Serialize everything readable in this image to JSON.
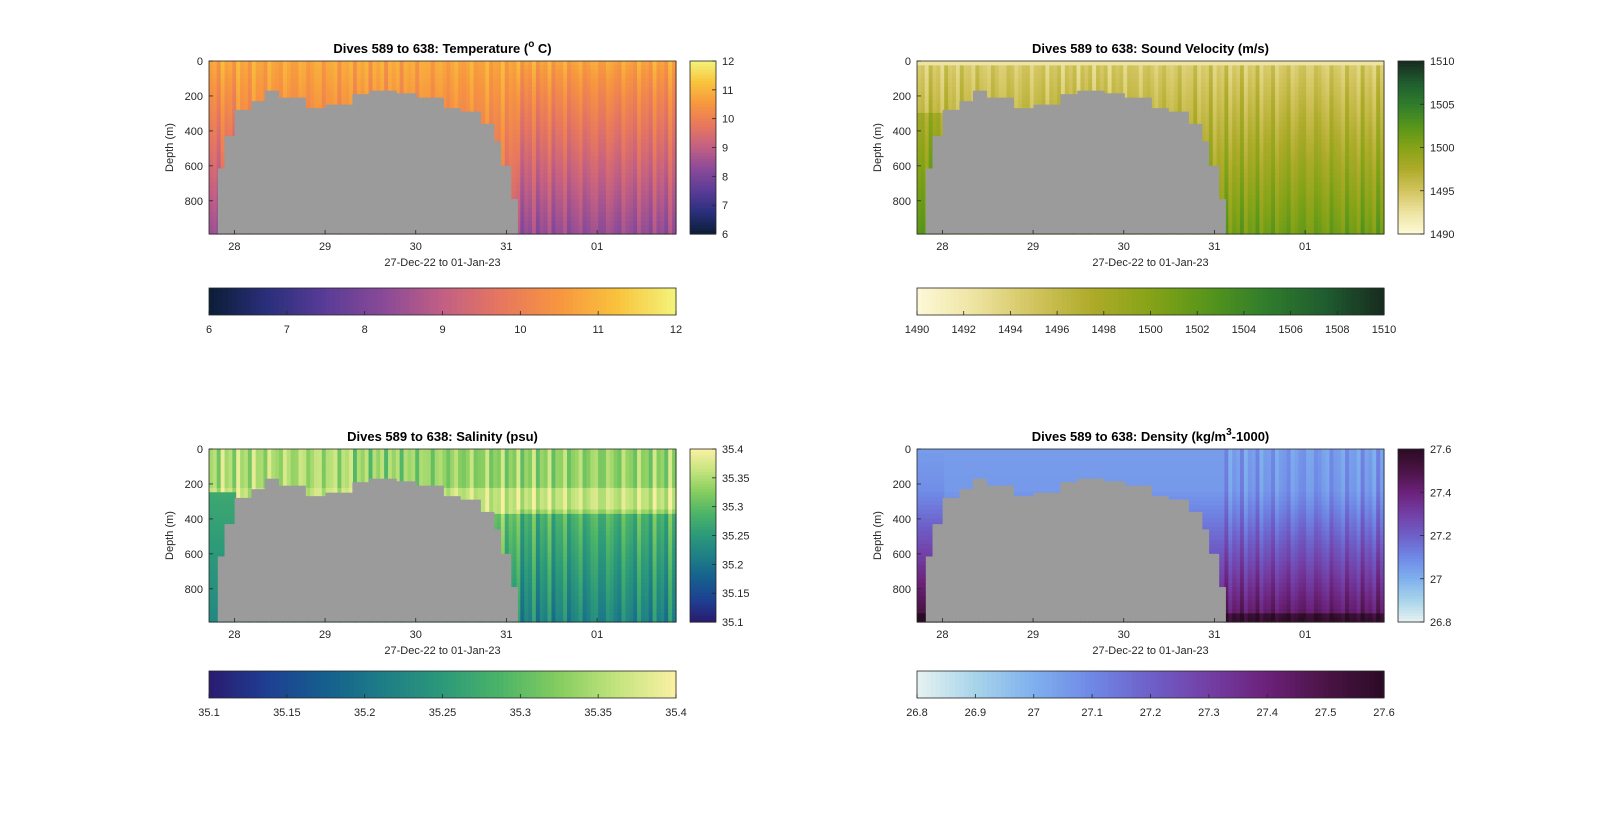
{
  "figure": {
    "panels": [
      {
        "id": "temperature",
        "title_main": "Dives 589 to 638: Temperature (",
        "title_sup": "o",
        "title_end": " C)",
        "ylabel": "Depth (m)",
        "xlabel": "27-Dec-22 to 01-Jan-23",
        "xticks": [
          "28",
          "29",
          "30",
          "31",
          "01"
        ],
        "yticks": [
          "0",
          "200",
          "400",
          "600",
          "800"
        ],
        "colormap": [
          "#0b1d35",
          "#2a2f7c",
          "#5a3c97",
          "#8a4a98",
          "#c25f84",
          "#e7775f",
          "#f7963f",
          "#f9c33c",
          "#f3f47a"
        ],
        "side_colorbar_ticks": [
          "12",
          "11",
          "10",
          "9",
          "8",
          "7",
          "6"
        ],
        "bottom_colorbar_ticks": [
          "6",
          "7",
          "8",
          "9",
          "10",
          "11",
          "12"
        ]
      },
      {
        "id": "sound-velocity",
        "title_main": "Dives 589 to 638: Sound Velocity (m/s)",
        "title_sup": "",
        "title_end": "",
        "ylabel": "Depth (m)",
        "xlabel": "27-Dec-22 to 01-Jan-23",
        "xticks": [
          "28",
          "29",
          "30",
          "31",
          "01"
        ],
        "yticks": [
          "0",
          "200",
          "400",
          "600",
          "800"
        ],
        "colormap": [
          "#fdf9d8",
          "#ede3a0",
          "#d2c45e",
          "#aeab2a",
          "#86a317",
          "#56951b",
          "#2f7c2c",
          "#1f5c2f",
          "#172b1f"
        ],
        "side_colorbar_ticks": [
          "1510",
          "1505",
          "1500",
          "1495",
          "1490"
        ],
        "bottom_colorbar_ticks": [
          "1490",
          "1492",
          "1494",
          "1496",
          "1498",
          "1500",
          "1502",
          "1504",
          "1506",
          "1508",
          "1510"
        ]
      },
      {
        "id": "salinity",
        "title_main": "Dives 589 to 638: Salinity (psu)",
        "title_sup": "",
        "title_end": "",
        "ylabel": "Depth (m)",
        "xlabel": "27-Dec-22 to 01-Jan-23",
        "xticks": [
          "28",
          "29",
          "30",
          "31",
          "01"
        ],
        "yticks": [
          "0",
          "200",
          "400",
          "600",
          "800"
        ],
        "colormap": [
          "#2a1b70",
          "#1e3f92",
          "#155f8e",
          "#1e7e86",
          "#2c997a",
          "#4cb468",
          "#86cd5f",
          "#c4e47e",
          "#fbf1a3"
        ],
        "side_colorbar_ticks": [
          "35.4",
          "35.35",
          "35.3",
          "35.25",
          "35.2",
          "35.15",
          "35.1"
        ],
        "bottom_colorbar_ticks": [
          "35.1",
          "35.15",
          "35.2",
          "35.25",
          "35.3",
          "35.35",
          "35.4"
        ]
      },
      {
        "id": "density",
        "title_main": "Dives 589 to 638: Density (kg/m",
        "title_sup": "3",
        "title_end": "-1000)",
        "ylabel": "Depth (m)",
        "xlabel": "27-Dec-22 to 01-Jan-23",
        "xticks": [
          "28",
          "29",
          "30",
          "31",
          "01"
        ],
        "yticks": [
          "0",
          "200",
          "400",
          "600",
          "800"
        ],
        "colormap": [
          "#e6f2f1",
          "#a8d4ea",
          "#7fb0ee",
          "#6f88e6",
          "#6e5fc8",
          "#733fa5",
          "#6b2179",
          "#4b1446",
          "#2a0b24"
        ],
        "side_colorbar_ticks": [
          "27.6",
          "27.4",
          "27.2",
          "27",
          "26.8"
        ],
        "bottom_colorbar_ticks": [
          "26.8",
          "26.9",
          "27",
          "27.1",
          "27.2",
          "27.3",
          "27.4",
          "27.5",
          "27.6"
        ]
      }
    ]
  },
  "chart_data": [
    {
      "type": "heatmap",
      "title": "Dives 589 to 638: Temperature (o C)",
      "xlabel": "27-Dec-22 to 01-Jan-23",
      "ylabel": "Depth (m)",
      "ylim": [
        0,
        990
      ],
      "y_reversed": true,
      "colorbar_range": [
        6,
        12
      ],
      "colormap_name": "thermal",
      "depth_profiles_degC": [
        {
          "depth_m": 0,
          "value": 10.8
        },
        {
          "depth_m": 200,
          "value": 10.6
        },
        {
          "depth_m": 400,
          "value": 10.3
        },
        {
          "depth_m": 600,
          "value": 9.6
        },
        {
          "depth_m": 800,
          "value": 8.7
        },
        {
          "depth_m": 990,
          "value": 8.0
        }
      ],
      "grid": false,
      "colorbar_positions": [
        "right",
        "bottom"
      ]
    },
    {
      "type": "heatmap",
      "title": "Dives 589 to 638: Sound Velocity (m/s)",
      "xlabel": "27-Dec-22 to 01-Jan-23",
      "ylabel": "Depth (m)",
      "ylim": [
        0,
        990
      ],
      "y_reversed": true,
      "colorbar_range": [
        1490,
        1510
      ],
      "colormap_name": "speed",
      "depth_profiles_ms": [
        {
          "depth_m": 0,
          "value": 1494
        },
        {
          "depth_m": 200,
          "value": 1496
        },
        {
          "depth_m": 400,
          "value": 1498
        },
        {
          "depth_m": 600,
          "value": 1499
        },
        {
          "depth_m": 800,
          "value": 1499.5
        },
        {
          "depth_m": 990,
          "value": 1500
        }
      ],
      "grid": false,
      "colorbar_positions": [
        "right",
        "bottom"
      ]
    },
    {
      "type": "heatmap",
      "title": "Dives 589 to 638: Salinity (psu)",
      "xlabel": "27-Dec-22 to 01-Jan-23",
      "ylabel": "Depth (m)",
      "ylim": [
        0,
        990
      ],
      "y_reversed": true,
      "colorbar_range": [
        35.1,
        35.4
      ],
      "colormap_name": "haline",
      "depth_profiles_psu": [
        {
          "depth_m": 0,
          "value": 35.34
        },
        {
          "depth_m": 200,
          "value": 35.35
        },
        {
          "depth_m": 300,
          "value": 35.38
        },
        {
          "depth_m": 400,
          "value": 35.32
        },
        {
          "depth_m": 600,
          "value": 35.29
        },
        {
          "depth_m": 800,
          "value": 35.27
        },
        {
          "depth_m": 990,
          "value": 35.26
        }
      ],
      "grid": false,
      "colorbar_positions": [
        "right",
        "bottom"
      ]
    },
    {
      "type": "heatmap",
      "title": "Dives 589 to 638: Density (kg/m3-1000)",
      "xlabel": "27-Dec-22 to 01-Jan-23",
      "ylabel": "Depth (m)",
      "ylim": [
        0,
        990
      ],
      "y_reversed": true,
      "colorbar_range": [
        26.8,
        27.6
      ],
      "colormap_name": "dense",
      "depth_profiles_kgm3": [
        {
          "depth_m": 0,
          "value": 27.05
        },
        {
          "depth_m": 200,
          "value": 27.07
        },
        {
          "depth_m": 400,
          "value": 27.2
        },
        {
          "depth_m": 600,
          "value": 27.3
        },
        {
          "depth_m": 800,
          "value": 27.38
        },
        {
          "depth_m": 990,
          "value": 27.5
        }
      ],
      "grid": false,
      "colorbar_positions": [
        "right",
        "bottom"
      ]
    }
  ],
  "masked_region": {
    "description_color": "#9b9b9b",
    "bottom_profile": [
      {
        "day": 27.8,
        "depth_m": 615
      },
      {
        "day": 27.9,
        "depth_m": 430
      },
      {
        "day": 28.0,
        "depth_m": 280
      },
      {
        "day": 28.2,
        "depth_m": 230
      },
      {
        "day": 28.35,
        "depth_m": 170
      },
      {
        "day": 28.5,
        "depth_m": 210
      },
      {
        "day": 28.8,
        "depth_m": 270
      },
      {
        "day": 29.0,
        "depth_m": 250
      },
      {
        "day": 29.3,
        "depth_m": 190
      },
      {
        "day": 29.5,
        "depth_m": 170
      },
      {
        "day": 29.8,
        "depth_m": 185
      },
      {
        "day": 30.0,
        "depth_m": 210
      },
      {
        "day": 30.3,
        "depth_m": 270
      },
      {
        "day": 30.5,
        "depth_m": 290
      },
      {
        "day": 30.7,
        "depth_m": 360
      },
      {
        "day": 30.85,
        "depth_m": 460
      },
      {
        "day": 30.95,
        "depth_m": 600
      },
      {
        "day": 31.05,
        "depth_m": 790
      }
    ],
    "end_day": 31.12
  }
}
